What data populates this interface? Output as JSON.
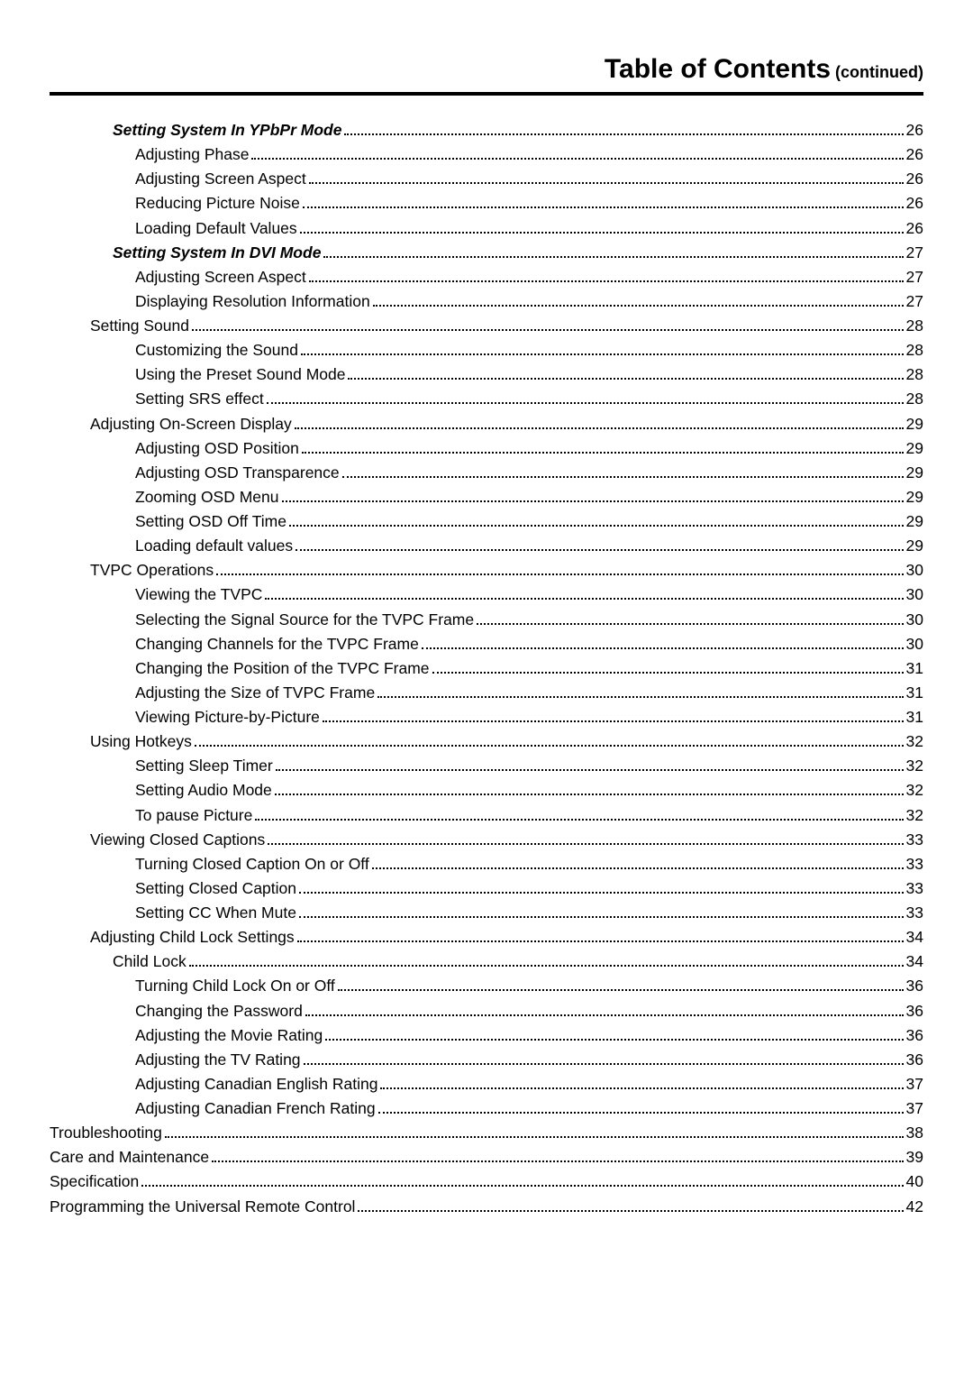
{
  "header": {
    "title_main": "Table of Contents",
    "title_sub": " (continued)"
  },
  "toc": [
    {
      "label": "Setting System In YPbPr Mode",
      "page": "26",
      "indent": 2,
      "italic": true
    },
    {
      "label": "Adjusting Phase",
      "page": "26",
      "indent": 3,
      "italic": false
    },
    {
      "label": "Adjusting Screen Aspect",
      "page": "26",
      "indent": 3,
      "italic": false
    },
    {
      "label": "Reducing Picture Noise",
      "page": "26",
      "indent": 3,
      "italic": false
    },
    {
      "label": "Loading Default Values",
      "page": "26",
      "indent": 3,
      "italic": false
    },
    {
      "label": "Setting System In DVI Mode",
      "page": "27",
      "indent": 2,
      "italic": true
    },
    {
      "label": "Adjusting Screen Aspect",
      "page": "27",
      "indent": 3,
      "italic": false
    },
    {
      "label": "Displaying Resolution Information",
      "page": "27",
      "indent": 3,
      "italic": false
    },
    {
      "label": "Setting Sound",
      "page": "28",
      "indent": 1,
      "italic": false
    },
    {
      "label": "Customizing the Sound",
      "page": "28",
      "indent": 3,
      "italic": false
    },
    {
      "label": "Using the Preset Sound Mode",
      "page": "28",
      "indent": 3,
      "italic": false
    },
    {
      "label": "Setting SRS effect",
      "page": "28",
      "indent": 3,
      "italic": false
    },
    {
      "label": "Adjusting On-Screen Display",
      "page": "29",
      "indent": 1,
      "italic": false
    },
    {
      "label": "Adjusting OSD Position",
      "page": "29",
      "indent": 3,
      "italic": false
    },
    {
      "label": "Adjusting OSD Transparence",
      "page": "29",
      "indent": 3,
      "italic": false
    },
    {
      "label": "Zooming OSD Menu",
      "page": "29",
      "indent": 3,
      "italic": false
    },
    {
      "label": "Setting OSD Off Time",
      "page": "29",
      "indent": 3,
      "italic": false
    },
    {
      "label": "Loading default values",
      "page": "29",
      "indent": 3,
      "italic": false
    },
    {
      "label": "TVPC Operations",
      "page": "30",
      "indent": 1,
      "italic": false
    },
    {
      "label": "Viewing the TVPC",
      "page": "30",
      "indent": 3,
      "italic": false
    },
    {
      "label": "Selecting the Signal Source for the TVPC Frame",
      "page": "30",
      "indent": 3,
      "italic": false
    },
    {
      "label": "Changing Channels for the TVPC Frame",
      "page": "30",
      "indent": 3,
      "italic": false
    },
    {
      "label": "Changing the Position of the TVPC Frame",
      "page": "31",
      "indent": 3,
      "italic": false
    },
    {
      "label": "Adjusting the Size of TVPC Frame",
      "page": "31",
      "indent": 3,
      "italic": false
    },
    {
      "label": "Viewing Picture-by-Picture",
      "page": "31",
      "indent": 3,
      "italic": false
    },
    {
      "label": "Using Hotkeys",
      "page": "32",
      "indent": 1,
      "italic": false
    },
    {
      "label": "Setting Sleep Timer",
      "page": "32",
      "indent": 3,
      "italic": false
    },
    {
      "label": "Setting Audio Mode",
      "page": "32",
      "indent": 3,
      "italic": false
    },
    {
      "label": "To pause Picture",
      "page": "32",
      "indent": 3,
      "italic": false
    },
    {
      "label": "Viewing Closed Captions",
      "page": "33",
      "indent": 1,
      "italic": false
    },
    {
      "label": "Turning Closed Caption On or Off",
      "page": "33",
      "indent": 3,
      "italic": false
    },
    {
      "label": "Setting Closed Caption",
      "page": "33",
      "indent": 3,
      "italic": false
    },
    {
      "label": "Setting CC When Mute",
      "page": "33",
      "indent": 3,
      "italic": false
    },
    {
      "label": "Adjusting Child Lock Settings",
      "page": "34",
      "indent": 1,
      "italic": false
    },
    {
      "label": "Child Lock",
      "page": "34",
      "indent": 2,
      "italic": false
    },
    {
      "label": "Turning Child Lock On or Off",
      "page": "36",
      "indent": 3,
      "italic": false
    },
    {
      "label": "Changing the Password",
      "page": "36",
      "indent": 3,
      "italic": false
    },
    {
      "label": "Adjusting the Movie Rating",
      "page": "36",
      "indent": 3,
      "italic": false
    },
    {
      "label": "Adjusting the TV Rating",
      "page": "36",
      "indent": 3,
      "italic": false
    },
    {
      "label": "Adjusting Canadian English Rating",
      "page": "37",
      "indent": 3,
      "italic": false
    },
    {
      "label": "Adjusting Canadian French Rating",
      "page": "37",
      "indent": 3,
      "italic": false
    },
    {
      "label": "Troubleshooting",
      "page": "38",
      "indent": 0,
      "italic": false
    },
    {
      "label": "Care and Maintenance",
      "page": "39",
      "indent": 0,
      "italic": false
    },
    {
      "label": "Specification",
      "page": "40",
      "indent": 0,
      "italic": false
    },
    {
      "label": "Programming the Universal Remote Control",
      "page": "42",
      "indent": 0,
      "italic": false
    }
  ]
}
